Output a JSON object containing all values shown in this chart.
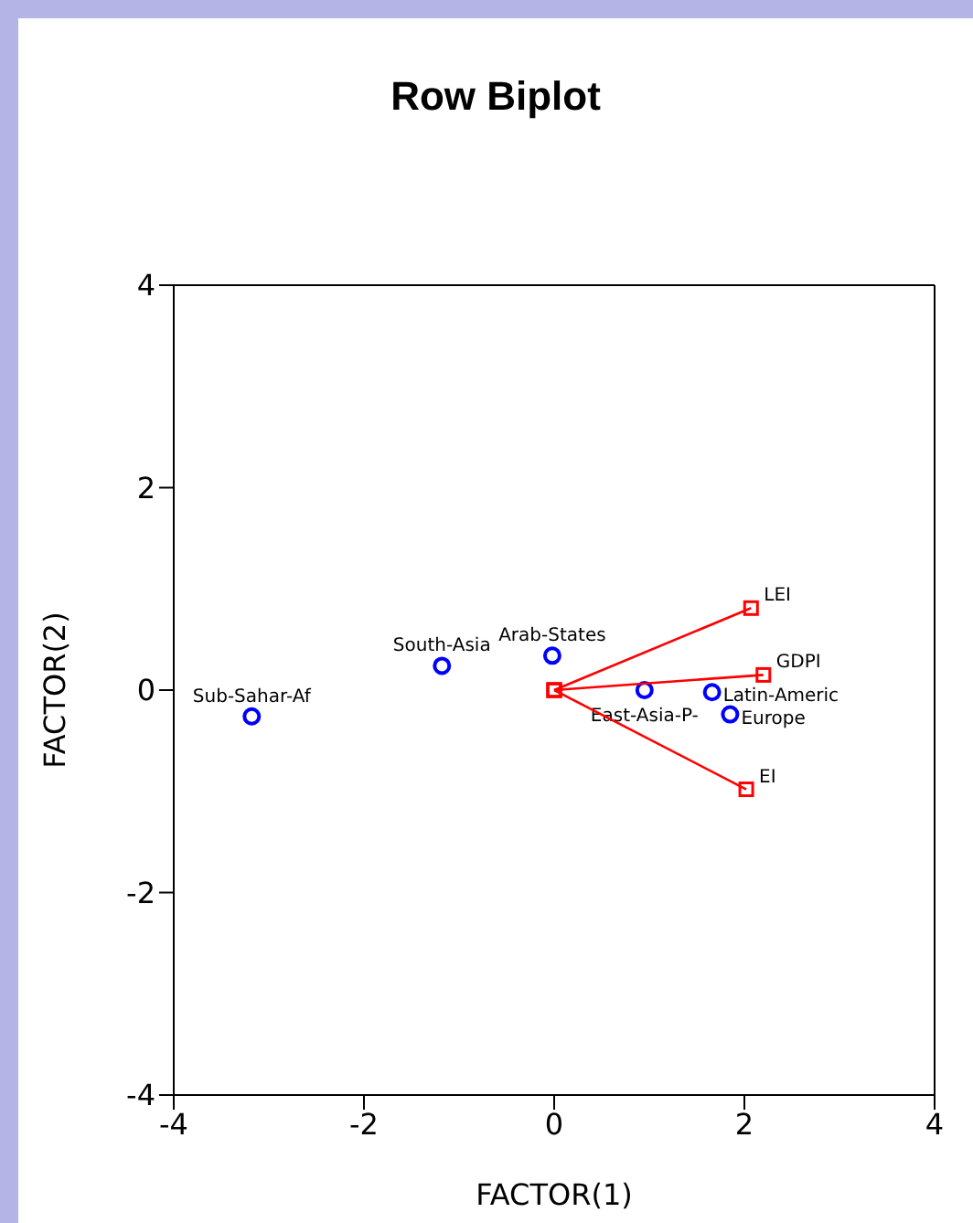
{
  "chart_data": {
    "type": "scatter",
    "title": "Row Biplot",
    "xlabel": "FACTOR(1)",
    "ylabel": "FACTOR(2)",
    "xlim": [
      -4,
      4
    ],
    "ylim": [
      -4,
      4
    ],
    "xticks": [
      -4,
      -2,
      0,
      2,
      4
    ],
    "yticks": [
      -4,
      -2,
      0,
      2,
      4
    ],
    "series": [
      {
        "color": "#0000ff",
        "marker": "circle",
        "x": [
          -3.18,
          -1.18,
          -0.02,
          0.95,
          1.66,
          1.85
        ],
        "values": [
          -0.26,
          0.24,
          0.34,
          0,
          -0.02,
          -0.24
        ],
        "value_labels": [
          "Sub-Sahar-Af",
          "South-Asia",
          "Arab-States",
          "East-Asia-P-",
          "Latin-Americ",
          "Europe"
        ]
      },
      {
        "type": "line",
        "name": "LEI",
        "color": "#ff0000",
        "marker": "square",
        "x": [
          0,
          2.07
        ],
        "values": [
          0,
          0.81
        ]
      },
      {
        "type": "line",
        "name": "GDPI",
        "color": "#ff0000",
        "marker": "square",
        "x": [
          0,
          2.2
        ],
        "values": [
          0,
          0.15
        ]
      },
      {
        "type": "line",
        "name": "EI",
        "color": "#ff0000",
        "marker": "square",
        "x": [
          0,
          2.02
        ],
        "values": [
          0,
          -0.98
        ]
      }
    ]
  }
}
